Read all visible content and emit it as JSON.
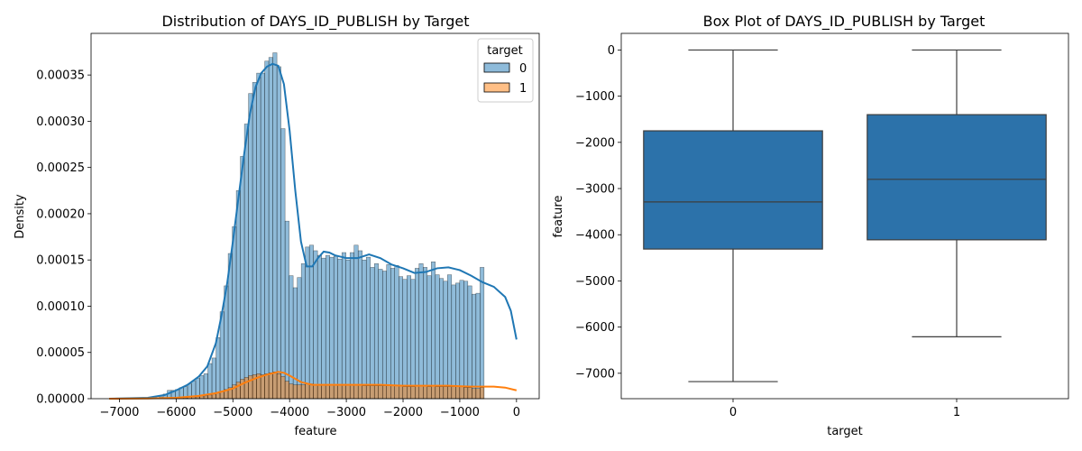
{
  "chart_data": [
    {
      "type": "histogram",
      "title": "Distribution of DAYS_ID_PUBLISH by Target",
      "xlabel": "feature",
      "ylabel": "Density",
      "xlim": [
        -7500,
        400
      ],
      "ylim": [
        0,
        0.000395
      ],
      "xticks": [
        -7000,
        -6000,
        -5000,
        -4000,
        -3000,
        -2000,
        -1000,
        0
      ],
      "xtick_labels": [
        "−7000",
        "−6000",
        "−5000",
        "−4000",
        "−3000",
        "−2000",
        "−1000",
        "0"
      ],
      "yticks": [
        0,
        5e-05,
        0.0001,
        0.00015,
        0.0002,
        0.00025,
        0.0003,
        0.00035
      ],
      "ytick_labels": [
        "0.00000",
        "0.00005",
        "0.00010",
        "0.00015",
        "0.00020",
        "0.00025",
        "0.00030",
        "0.00035"
      ],
      "legend": {
        "title": "target",
        "placement": "top-right",
        "entries": [
          "0",
          "1"
        ]
      },
      "bin_start": -6300,
      "bin_width": 71.6,
      "series": [
        {
          "name": "0",
          "color": "#1f77b4",
          "values": [
            2e-06,
            5e-06,
            9e-06,
            9e-06,
            1e-05,
            1.2e-05,
            1.3e-05,
            1.6e-05,
            1.9e-05,
            2.2e-05,
            2.5e-05,
            2.7e-05,
            3.8e-05,
            4.4e-05,
            6.6e-05,
            9.4e-05,
            0.000122,
            0.000157,
            0.000186,
            0.000225,
            0.000262,
            0.000297,
            0.00033,
            0.000342,
            0.000352,
            0.000352,
            0.000365,
            0.000369,
            0.000374,
            0.000359,
            0.000292,
            0.000192,
            0.000133,
            0.00012,
            0.000131,
            0.000146,
            0.000164,
            0.000166,
            0.00016,
            0.000155,
            0.000152,
            0.000155,
            0.000153,
            0.000154,
            0.000151,
            0.000158,
            0.00015,
            0.000158,
            0.000166,
            0.00016,
            0.00015,
            0.000153,
            0.000142,
            0.000146,
            0.00014,
            0.000138,
            0.000145,
            0.000141,
            0.000144,
            0.000132,
            0.000129,
            0.000133,
            0.000129,
            0.000141,
            0.000146,
            0.000142,
            0.000133,
            0.000148,
            0.000134,
            0.00013,
            0.000127,
            0.000134,
            0.000123,
            0.000125,
            0.000128,
            0.000127,
            0.000122,
            0.000113,
            0.000114,
            0.000142
          ]
        },
        {
          "name": "1",
          "color": "#ff7f0e",
          "values": [
            0.0,
            1e-06,
            1e-06,
            1e-06,
            1e-06,
            1e-06,
            1e-06,
            2e-06,
            2e-06,
            2e-06,
            3e-06,
            3e-06,
            4e-06,
            5e-06,
            6e-06,
            8e-06,
            1e-05,
            1.2e-05,
            1.5e-05,
            1.8e-05,
            2.1e-05,
            2.3e-05,
            2.5e-05,
            2.6e-05,
            2.7e-05,
            2.6e-05,
            2.7e-05,
            2.8e-05,
            2.9e-05,
            2.7e-05,
            2.4e-05,
            1.9e-05,
            1.6e-05,
            1.5e-05,
            1.5e-05,
            1.5e-05,
            1.6e-05,
            1.6e-05,
            1.5e-05,
            1.5e-05,
            1.5e-05,
            1.5e-05,
            1.5e-05,
            1.5e-05,
            1.5e-05,
            1.5e-05,
            1.5e-05,
            1.5e-05,
            1.5e-05,
            1.5e-05,
            1.4e-05,
            1.4e-05,
            1.4e-05,
            1.4e-05,
            1.4e-05,
            1.4e-05,
            1.4e-05,
            1.4e-05,
            1.4e-05,
            1.4e-05,
            1.3e-05,
            1.3e-05,
            1.3e-05,
            1.4e-05,
            1.4e-05,
            1.4e-05,
            1.3e-05,
            1.4e-05,
            1.3e-05,
            1.3e-05,
            1.3e-05,
            1.3e-05,
            1.3e-05,
            1.3e-05,
            1.3e-05,
            1.2e-05,
            1.2e-05,
            1.1e-05,
            1.1e-05,
            1.2e-05
          ]
        }
      ],
      "kde": [
        {
          "name": "0",
          "color": "#1f77b4",
          "points": [
            [
              -7180,
              0
            ],
            [
              -6500,
              1e-06
            ],
            [
              -6200,
              4e-06
            ],
            [
              -6000,
              9e-06
            ],
            [
              -5800,
              1.5e-05
            ],
            [
              -5600,
              2.4e-05
            ],
            [
              -5450,
              3.5e-05
            ],
            [
              -5300,
              6e-05
            ],
            [
              -5200,
              9e-05
            ],
            [
              -5100,
              0.000125
            ],
            [
              -5000,
              0.00017
            ],
            [
              -4900,
              0.000218
            ],
            [
              -4800,
              0.000265
            ],
            [
              -4700,
              0.000308
            ],
            [
              -4600,
              0.000337
            ],
            [
              -4500,
              0.000352
            ],
            [
              -4400,
              0.000359
            ],
            [
              -4300,
              0.000362
            ],
            [
              -4200,
              0.00036
            ],
            [
              -4100,
              0.00034
            ],
            [
              -4000,
              0.00029
            ],
            [
              -3900,
              0.000225
            ],
            [
              -3800,
              0.00017
            ],
            [
              -3700,
              0.000143
            ],
            [
              -3600,
              0.000143
            ],
            [
              -3500,
              0.000152
            ],
            [
              -3400,
              0.000159
            ],
            [
              -3300,
              0.000158
            ],
            [
              -3200,
              0.000155
            ],
            [
              -3000,
              0.000152
            ],
            [
              -2800,
              0.000152
            ],
            [
              -2600,
              0.000156
            ],
            [
              -2400,
              0.000152
            ],
            [
              -2200,
              0.000145
            ],
            [
              -2000,
              0.000141
            ],
            [
              -1800,
              0.000136
            ],
            [
              -1600,
              0.000137
            ],
            [
              -1400,
              0.000141
            ],
            [
              -1200,
              0.000142
            ],
            [
              -1000,
              0.000139
            ],
            [
              -800,
              0.000133
            ],
            [
              -600,
              0.000126
            ],
            [
              -400,
              0.000121
            ],
            [
              -200,
              0.00011
            ],
            [
              -100,
              9.5e-05
            ],
            [
              0,
              6.4e-05
            ]
          ]
        },
        {
          "name": "1",
          "color": "#ff7f0e",
          "points": [
            [
              -7180,
              0
            ],
            [
              -6500,
              3e-07
            ],
            [
              -6000,
              1e-06
            ],
            [
              -5600,
              3e-06
            ],
            [
              -5300,
              6e-06
            ],
            [
              -5000,
              1.1e-05
            ],
            [
              -4800,
              1.7e-05
            ],
            [
              -4600,
              2.2e-05
            ],
            [
              -4400,
              2.6e-05
            ],
            [
              -4200,
              2.9e-05
            ],
            [
              -4100,
              2.8e-05
            ],
            [
              -4000,
              2.5e-05
            ],
            [
              -3800,
              1.8e-05
            ],
            [
              -3600,
              1.5e-05
            ],
            [
              -3200,
              1.5e-05
            ],
            [
              -2800,
              1.5e-05
            ],
            [
              -2400,
              1.5e-05
            ],
            [
              -2000,
              1.4e-05
            ],
            [
              -1600,
              1.4e-05
            ],
            [
              -1200,
              1.4e-05
            ],
            [
              -800,
              1.3e-05
            ],
            [
              -400,
              1.3e-05
            ],
            [
              -200,
              1.2e-05
            ],
            [
              0,
              9e-06
            ]
          ]
        }
      ]
    },
    {
      "type": "box",
      "title": "Box Plot of DAYS_ID_PUBLISH by Target",
      "xlabel": "target",
      "ylabel": "feature",
      "categories": [
        "0",
        "1"
      ],
      "ylim": [
        -7550,
        360
      ],
      "yticks": [
        0,
        -1000,
        -2000,
        -3000,
        -4000,
        -5000,
        -6000,
        -7000
      ],
      "ytick_labels": [
        "0",
        "−1000",
        "−2000",
        "−3000",
        "−4000",
        "−5000",
        "−6000",
        "−7000"
      ],
      "color": "#2c72aa",
      "boxes": [
        {
          "name": "0",
          "whislo": -7180,
          "q1": -4310,
          "med": -3290,
          "q3": -1750,
          "whishi": 0
        },
        {
          "name": "1",
          "whislo": -6210,
          "q1": -4110,
          "med": -2800,
          "q3": -1400,
          "whishi": 0
        }
      ]
    }
  ]
}
